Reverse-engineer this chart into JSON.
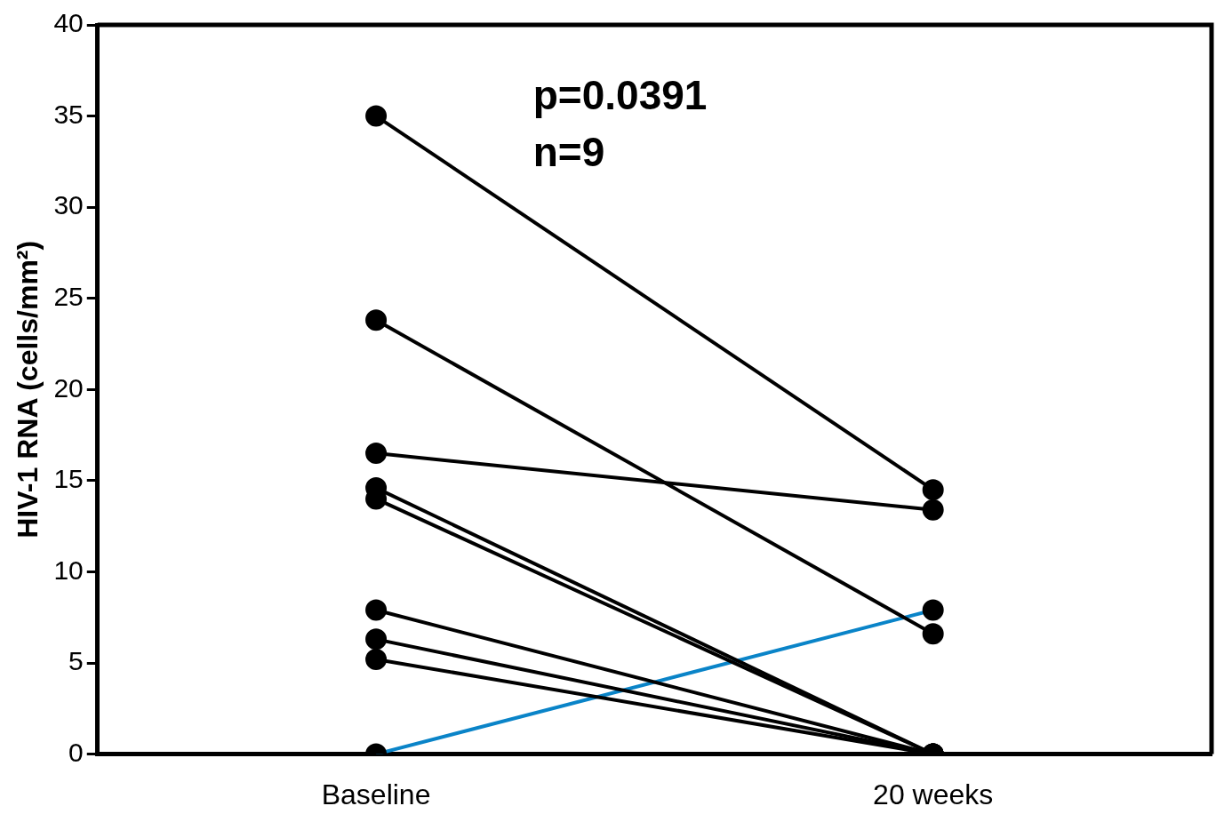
{
  "chart_data": {
    "type": "line",
    "ylabel": "HIV-1 RNA (cells/mm²)",
    "categories": [
      "Baseline",
      "20 weeks"
    ],
    "ylim": [
      0,
      40
    ],
    "yticks": [
      0,
      5,
      10,
      15,
      20,
      25,
      30,
      35,
      40
    ],
    "marker": "circle",
    "annotations": [
      "p=0.0391",
      "n=9"
    ],
    "series": [
      {
        "color": "#000000",
        "values": [
          35,
          14.5
        ]
      },
      {
        "color": "#000000",
        "values": [
          23.8,
          6.6
        ]
      },
      {
        "color": "#000000",
        "values": [
          16.5,
          13.4
        ]
      },
      {
        "color": "#000000",
        "values": [
          14.6,
          0
        ]
      },
      {
        "color": "#000000",
        "values": [
          14.0,
          0
        ]
      },
      {
        "color": "#000000",
        "values": [
          7.9,
          0
        ]
      },
      {
        "color": "#000000",
        "values": [
          6.3,
          0
        ]
      },
      {
        "color": "#000000",
        "values": [
          5.2,
          0
        ]
      },
      {
        "color": "#0a84c8",
        "values": [
          0,
          7.9
        ]
      }
    ]
  }
}
